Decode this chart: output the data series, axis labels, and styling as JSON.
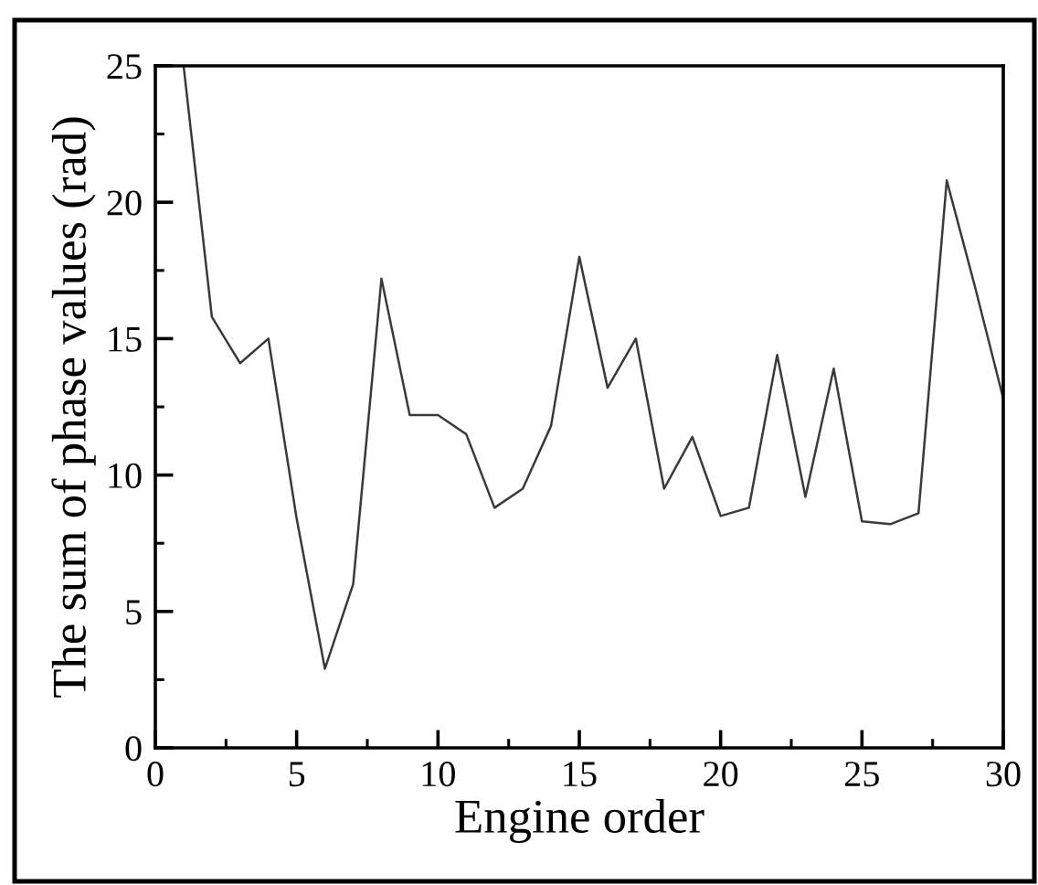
{
  "chart_data": {
    "type": "line",
    "xlabel": "Engine order",
    "ylabel": "The sum of phase values (rad)",
    "x": [
      1,
      2,
      3,
      4,
      5,
      6,
      7,
      8,
      9,
      10,
      11,
      12,
      13,
      14,
      15,
      16,
      17,
      18,
      19,
      20,
      21,
      22,
      23,
      24,
      25,
      26,
      27,
      28,
      29,
      30
    ],
    "series": [
      {
        "color": "#3a3a3a",
        "values": [
          25,
          15.8,
          14.1,
          15.0,
          8.4,
          2.9,
          6.0,
          17.2,
          12.2,
          12.2,
          11.5,
          8.8,
          9.5,
          11.8,
          18.0,
          13.2,
          15.0,
          9.5,
          11.4,
          8.5,
          8.8,
          14.4,
          9.2,
          13.9,
          8.3,
          8.2,
          8.6,
          20.8,
          16.9,
          12.8
        ]
      }
    ],
    "xlim": [
      0,
      30
    ],
    "ylim": [
      0,
      25
    ],
    "xticks": [
      0,
      {
        "value": 2.5,
        "label": null
      },
      5,
      {
        "value": 7.5,
        "label": null
      },
      10,
      {
        "value": 12.5,
        "label": null
      },
      15,
      {
        "value": 17.5,
        "label": null
      },
      20,
      {
        "value": 22.5,
        "label": null
      },
      25,
      {
        "value": 27.5,
        "label": null
      },
      30
    ],
    "yticks": [
      0,
      {
        "value": 2.5,
        "label": null
      },
      5,
      {
        "value": 7.5,
        "label": null
      },
      10,
      {
        "value": 12.5,
        "label": null
      },
      15,
      {
        "value": 17.5,
        "label": null
      },
      20,
      {
        "value": 22.5,
        "label": null
      },
      25
    ],
    "line_style": "solid",
    "marker": "none"
  }
}
